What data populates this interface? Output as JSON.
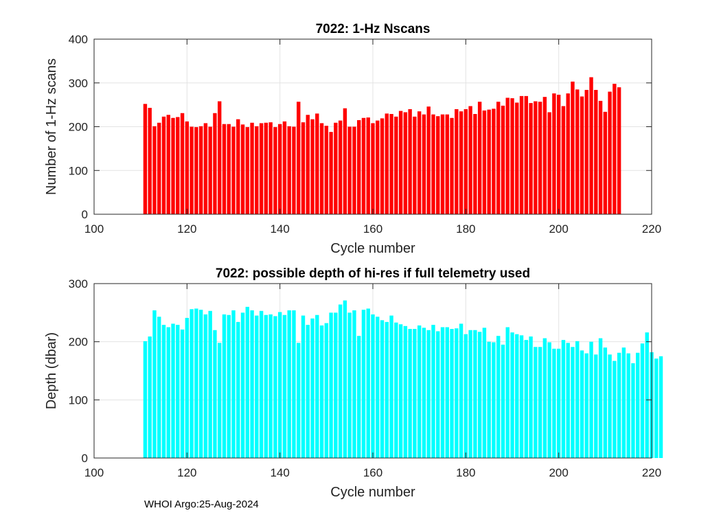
{
  "chart_data": [
    {
      "type": "bar",
      "title": "7022: 1-Hz Nscans",
      "xlabel": "Cycle number",
      "ylabel": "Number of 1-Hz scans",
      "xlim": [
        100,
        220
      ],
      "ylim": [
        0,
        400
      ],
      "xticks": [
        100,
        120,
        140,
        160,
        180,
        200,
        220
      ],
      "yticks": [
        0,
        100,
        200,
        300,
        400
      ],
      "grid": true,
      "bar_color": "#ff0000",
      "x_start": 111,
      "values": [
        252,
        243,
        201,
        209,
        223,
        227,
        220,
        222,
        231,
        212,
        200,
        199,
        201,
        208,
        200,
        231,
        258,
        206,
        206,
        200,
        217,
        205,
        199,
        209,
        201,
        208,
        209,
        210,
        199,
        206,
        212,
        201,
        200,
        257,
        210,
        227,
        217,
        230,
        208,
        202,
        188,
        209,
        214,
        242,
        200,
        200,
        215,
        220,
        221,
        208,
        214,
        219,
        230,
        229,
        223,
        236,
        233,
        240,
        223,
        235,
        228,
        246,
        228,
        224,
        228,
        228,
        220,
        240,
        235,
        240,
        247,
        229,
        257,
        237,
        239,
        241,
        257,
        248,
        266,
        265,
        255,
        270,
        270,
        254,
        258,
        257,
        268,
        233,
        276,
        273,
        247,
        276,
        303,
        285,
        269,
        284,
        313,
        284,
        259,
        234,
        280,
        298,
        290
      ]
    },
    {
      "type": "bar",
      "title": "7022: possible depth of hi-res if full telemetry used",
      "xlabel": "Cycle number",
      "ylabel": "Depth (dbar)",
      "xlim": [
        100,
        220
      ],
      "ylim": [
        0,
        300
      ],
      "xticks": [
        100,
        120,
        140,
        160,
        180,
        200,
        220
      ],
      "yticks": [
        0,
        100,
        200,
        300
      ],
      "grid": true,
      "bar_color": "#00ffff",
      "x_start": 111,
      "values": [
        201,
        209,
        254,
        243,
        229,
        225,
        231,
        229,
        221,
        241,
        256,
        257,
        255,
        247,
        253,
        220,
        198,
        247,
        246,
        254,
        234,
        250,
        260,
        254,
        245,
        253,
        246,
        247,
        244,
        251,
        246,
        254,
        254,
        198,
        245,
        229,
        240,
        246,
        228,
        232,
        250,
        250,
        264,
        271,
        250,
        254,
        210,
        255,
        257,
        247,
        243,
        237,
        234,
        245,
        233,
        230,
        227,
        222,
        222,
        228,
        224,
        220,
        229,
        218,
        225,
        225,
        222,
        223,
        231,
        213,
        220,
        220,
        217,
        224,
        200,
        199,
        210,
        195,
        225,
        216,
        213,
        211,
        203,
        209,
        191,
        191,
        206,
        199,
        188,
        188,
        203,
        198,
        191,
        201,
        185,
        180,
        200,
        178,
        206,
        190,
        178,
        167,
        181,
        190,
        180,
        163,
        181,
        197,
        216,
        182,
        171,
        175
      ]
    }
  ],
  "footer": "WHOI Argo:25-Aug-2024"
}
